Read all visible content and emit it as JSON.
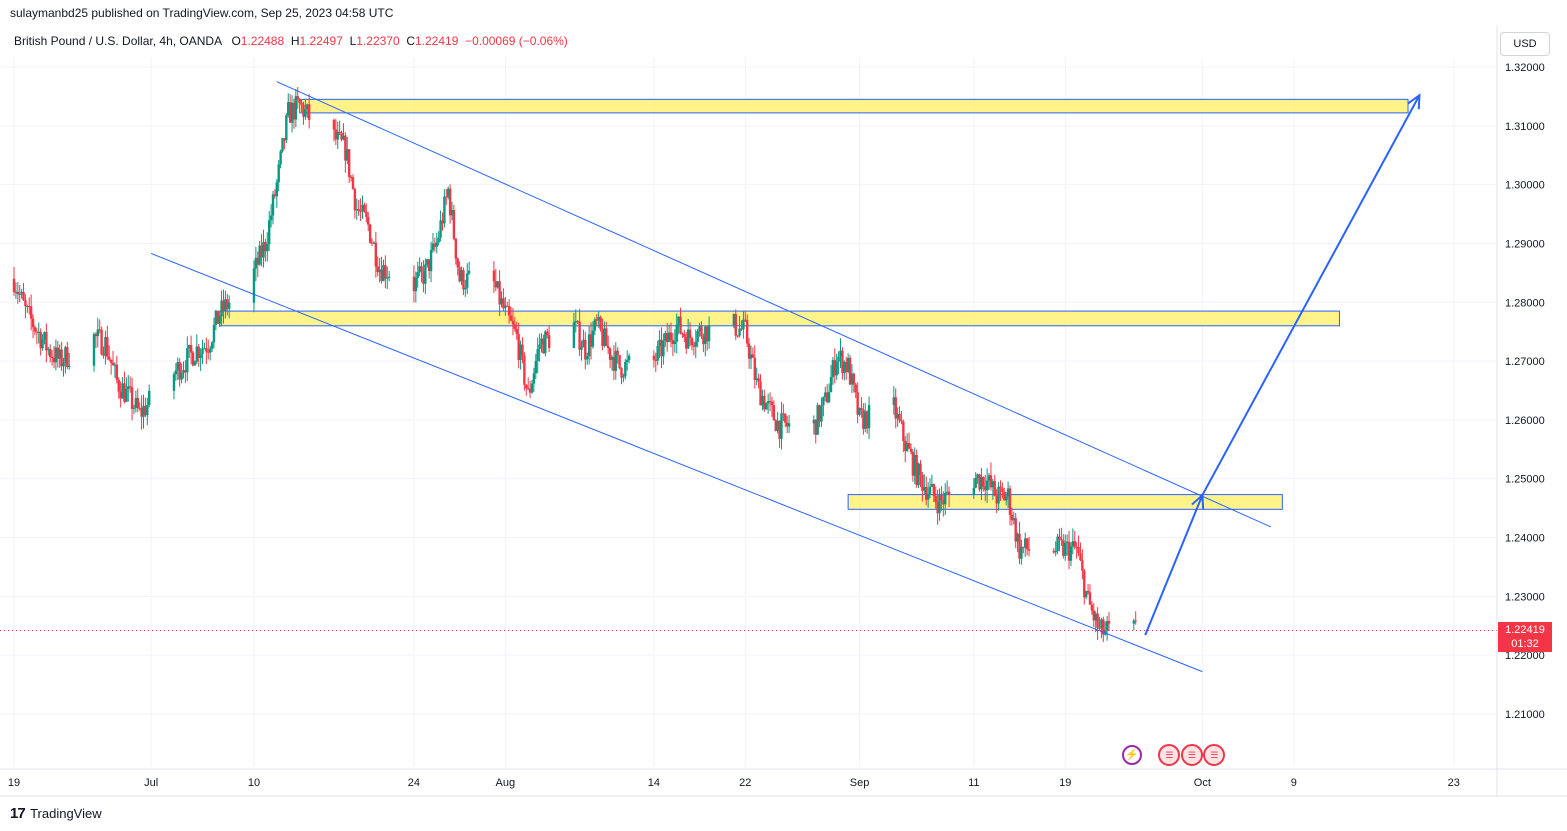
{
  "header": {
    "published": "sulaymanbd25 published on TradingView.com, Sep 25, 2023 04:58 UTC",
    "symbol": "British Pound / U.S. Dollar, 4h, OANDA",
    "o_label": "O",
    "o_value": "1.22488",
    "h_label": "H",
    "h_value": "1.22497",
    "l_label": "L",
    "l_value": "1.22370",
    "c_label": "C",
    "c_value": "1.22419",
    "change": "−0.00069 (−0.06%)",
    "currency": "USD"
  },
  "price_tag": {
    "price": "1.22419",
    "countdown": "01:32"
  },
  "events": {
    "bolt_icon": "lightning-icon",
    "flag_icon": "us-flag-icon"
  },
  "footer": {
    "brand_logo": "17",
    "brand": "TradingView"
  },
  "colors": {
    "up": "#089981",
    "down": "#f23645",
    "zone_fill": "#fff176",
    "zone_border": "#2962ff",
    "line": "#2962ff"
  },
  "chart_data": {
    "type": "candlestick",
    "y_axis": {
      "min": 1.2025,
      "max": 1.322,
      "ticks": [
        "1.32000",
        "1.31000",
        "1.30000",
        "1.29000",
        "1.28000",
        "1.27000",
        "1.26000",
        "1.25000",
        "1.24000",
        "1.23000",
        "1.22000",
        "1.21000"
      ]
    },
    "x_axis": {
      "range": [
        "2023-06-19",
        "2023-10-26"
      ],
      "ticks": [
        {
          "date": "2023-06-19",
          "label": "19"
        },
        {
          "date": "2023-07-01",
          "label": "Jul"
        },
        {
          "date": "2023-07-10",
          "label": "10"
        },
        {
          "date": "2023-07-24",
          "label": "24"
        },
        {
          "date": "2023-08-01",
          "label": "Aug"
        },
        {
          "date": "2023-08-14",
          "label": "14"
        },
        {
          "date": "2023-08-22",
          "label": "22"
        },
        {
          "date": "2023-09-01",
          "label": "Sep"
        },
        {
          "date": "2023-09-11",
          "label": "11"
        },
        {
          "date": "2023-09-19",
          "label": "19"
        },
        {
          "date": "2023-10-01",
          "label": "Oct"
        },
        {
          "date": "2023-10-09",
          "label": "9"
        },
        {
          "date": "2023-10-23",
          "label": "23"
        }
      ]
    },
    "last_price": 1.22419,
    "price_path": [
      [
        "2023-06-19",
        1.284
      ],
      [
        "2023-06-20",
        1.2785
      ],
      [
        "2023-06-22",
        1.272
      ],
      [
        "2023-06-23",
        1.27
      ],
      [
        "2023-06-26",
        1.274
      ],
      [
        "2023-06-27",
        1.273
      ],
      [
        "2023-06-28",
        1.2665
      ],
      [
        "2023-06-29",
        1.264
      ],
      [
        "2023-06-30",
        1.261
      ],
      [
        "2023-07-03",
        1.268
      ],
      [
        "2023-07-05",
        1.272
      ],
      [
        "2023-07-06",
        1.273
      ],
      [
        "2023-07-07",
        1.278
      ],
      [
        "2023-07-10",
        1.285
      ],
      [
        "2023-07-11",
        1.29
      ],
      [
        "2023-07-12",
        1.3
      ],
      [
        "2023-07-13",
        1.312
      ],
      [
        "2023-07-14",
        1.3135
      ],
      [
        "2023-07-15",
        1.311
      ],
      [
        "2023-07-17",
        1.308
      ],
      [
        "2023-07-18",
        1.306
      ],
      [
        "2023-07-19",
        1.296
      ],
      [
        "2023-07-20",
        1.293
      ],
      [
        "2023-07-21",
        1.286
      ],
      [
        "2023-07-24",
        1.283
      ],
      [
        "2023-07-25",
        1.285
      ],
      [
        "2023-07-26",
        1.29
      ],
      [
        "2023-07-27",
        1.299
      ],
      [
        "2023-07-28",
        1.284
      ],
      [
        "2023-07-31",
        1.283
      ],
      [
        "2023-08-01",
        1.278
      ],
      [
        "2023-08-02",
        1.274
      ],
      [
        "2023-08-03",
        1.264
      ],
      [
        "2023-08-04",
        1.273
      ],
      [
        "2023-08-07",
        1.276
      ],
      [
        "2023-08-08",
        1.272
      ],
      [
        "2023-08-09",
        1.276
      ],
      [
        "2023-08-10",
        1.272
      ],
      [
        "2023-08-11",
        1.269
      ],
      [
        "2023-08-14",
        1.27
      ],
      [
        "2023-08-15",
        1.273
      ],
      [
        "2023-08-16",
        1.276
      ],
      [
        "2023-08-17",
        1.274
      ],
      [
        "2023-08-18",
        1.275
      ],
      [
        "2023-08-21",
        1.276
      ],
      [
        "2023-08-22",
        1.275
      ],
      [
        "2023-08-23",
        1.266
      ],
      [
        "2023-08-24",
        1.262
      ],
      [
        "2023-08-25",
        1.259
      ],
      [
        "2023-08-28",
        1.259
      ],
      [
        "2023-08-29",
        1.263
      ],
      [
        "2023-08-30",
        1.271
      ],
      [
        "2023-08-31",
        1.269
      ],
      [
        "2023-09-01",
        1.26
      ],
      [
        "2023-09-04",
        1.262
      ],
      [
        "2023-09-05",
        1.256
      ],
      [
        "2023-09-06",
        1.251
      ],
      [
        "2023-09-07",
        1.248
      ],
      [
        "2023-09-08",
        1.246
      ],
      [
        "2023-09-11",
        1.25
      ],
      [
        "2023-09-12",
        1.25
      ],
      [
        "2023-09-13",
        1.247
      ],
      [
        "2023-09-14",
        1.247
      ],
      [
        "2023-09-15",
        1.238
      ],
      [
        "2023-09-18",
        1.238
      ],
      [
        "2023-09-19",
        1.238
      ],
      [
        "2023-09-20",
        1.238
      ],
      [
        "2023-09-21",
        1.229
      ],
      [
        "2023-09-22",
        1.224
      ],
      [
        "2023-09-25",
        1.22419
      ]
    ],
    "zones": [
      {
        "from": "2023-07-14",
        "to": "2023-10-19",
        "top": 1.3145,
        "bottom": 1.3122
      },
      {
        "from": "2023-07-07",
        "to": "2023-10-13",
        "top": 1.2785,
        "bottom": 1.276
      },
      {
        "from": "2023-08-31",
        "to": "2023-10-08",
        "top": 1.2473,
        "bottom": 1.2448
      }
    ],
    "trendlines": [
      {
        "from": [
          "2023-07-12",
          1.3175
        ],
        "to": [
          "2023-10-07",
          1.2418
        ]
      },
      {
        "from": [
          "2023-07-01",
          1.2883
        ],
        "to": [
          "2023-10-01",
          1.2172
        ]
      }
    ],
    "projection_arrows": [
      {
        "from": [
          "2023-09-26",
          1.2234
        ],
        "to": [
          "2023-10-01",
          1.2472
        ]
      },
      {
        "from": [
          "2023-10-01",
          1.2472
        ],
        "to": [
          "2023-10-20",
          1.3152
        ]
      }
    ]
  }
}
